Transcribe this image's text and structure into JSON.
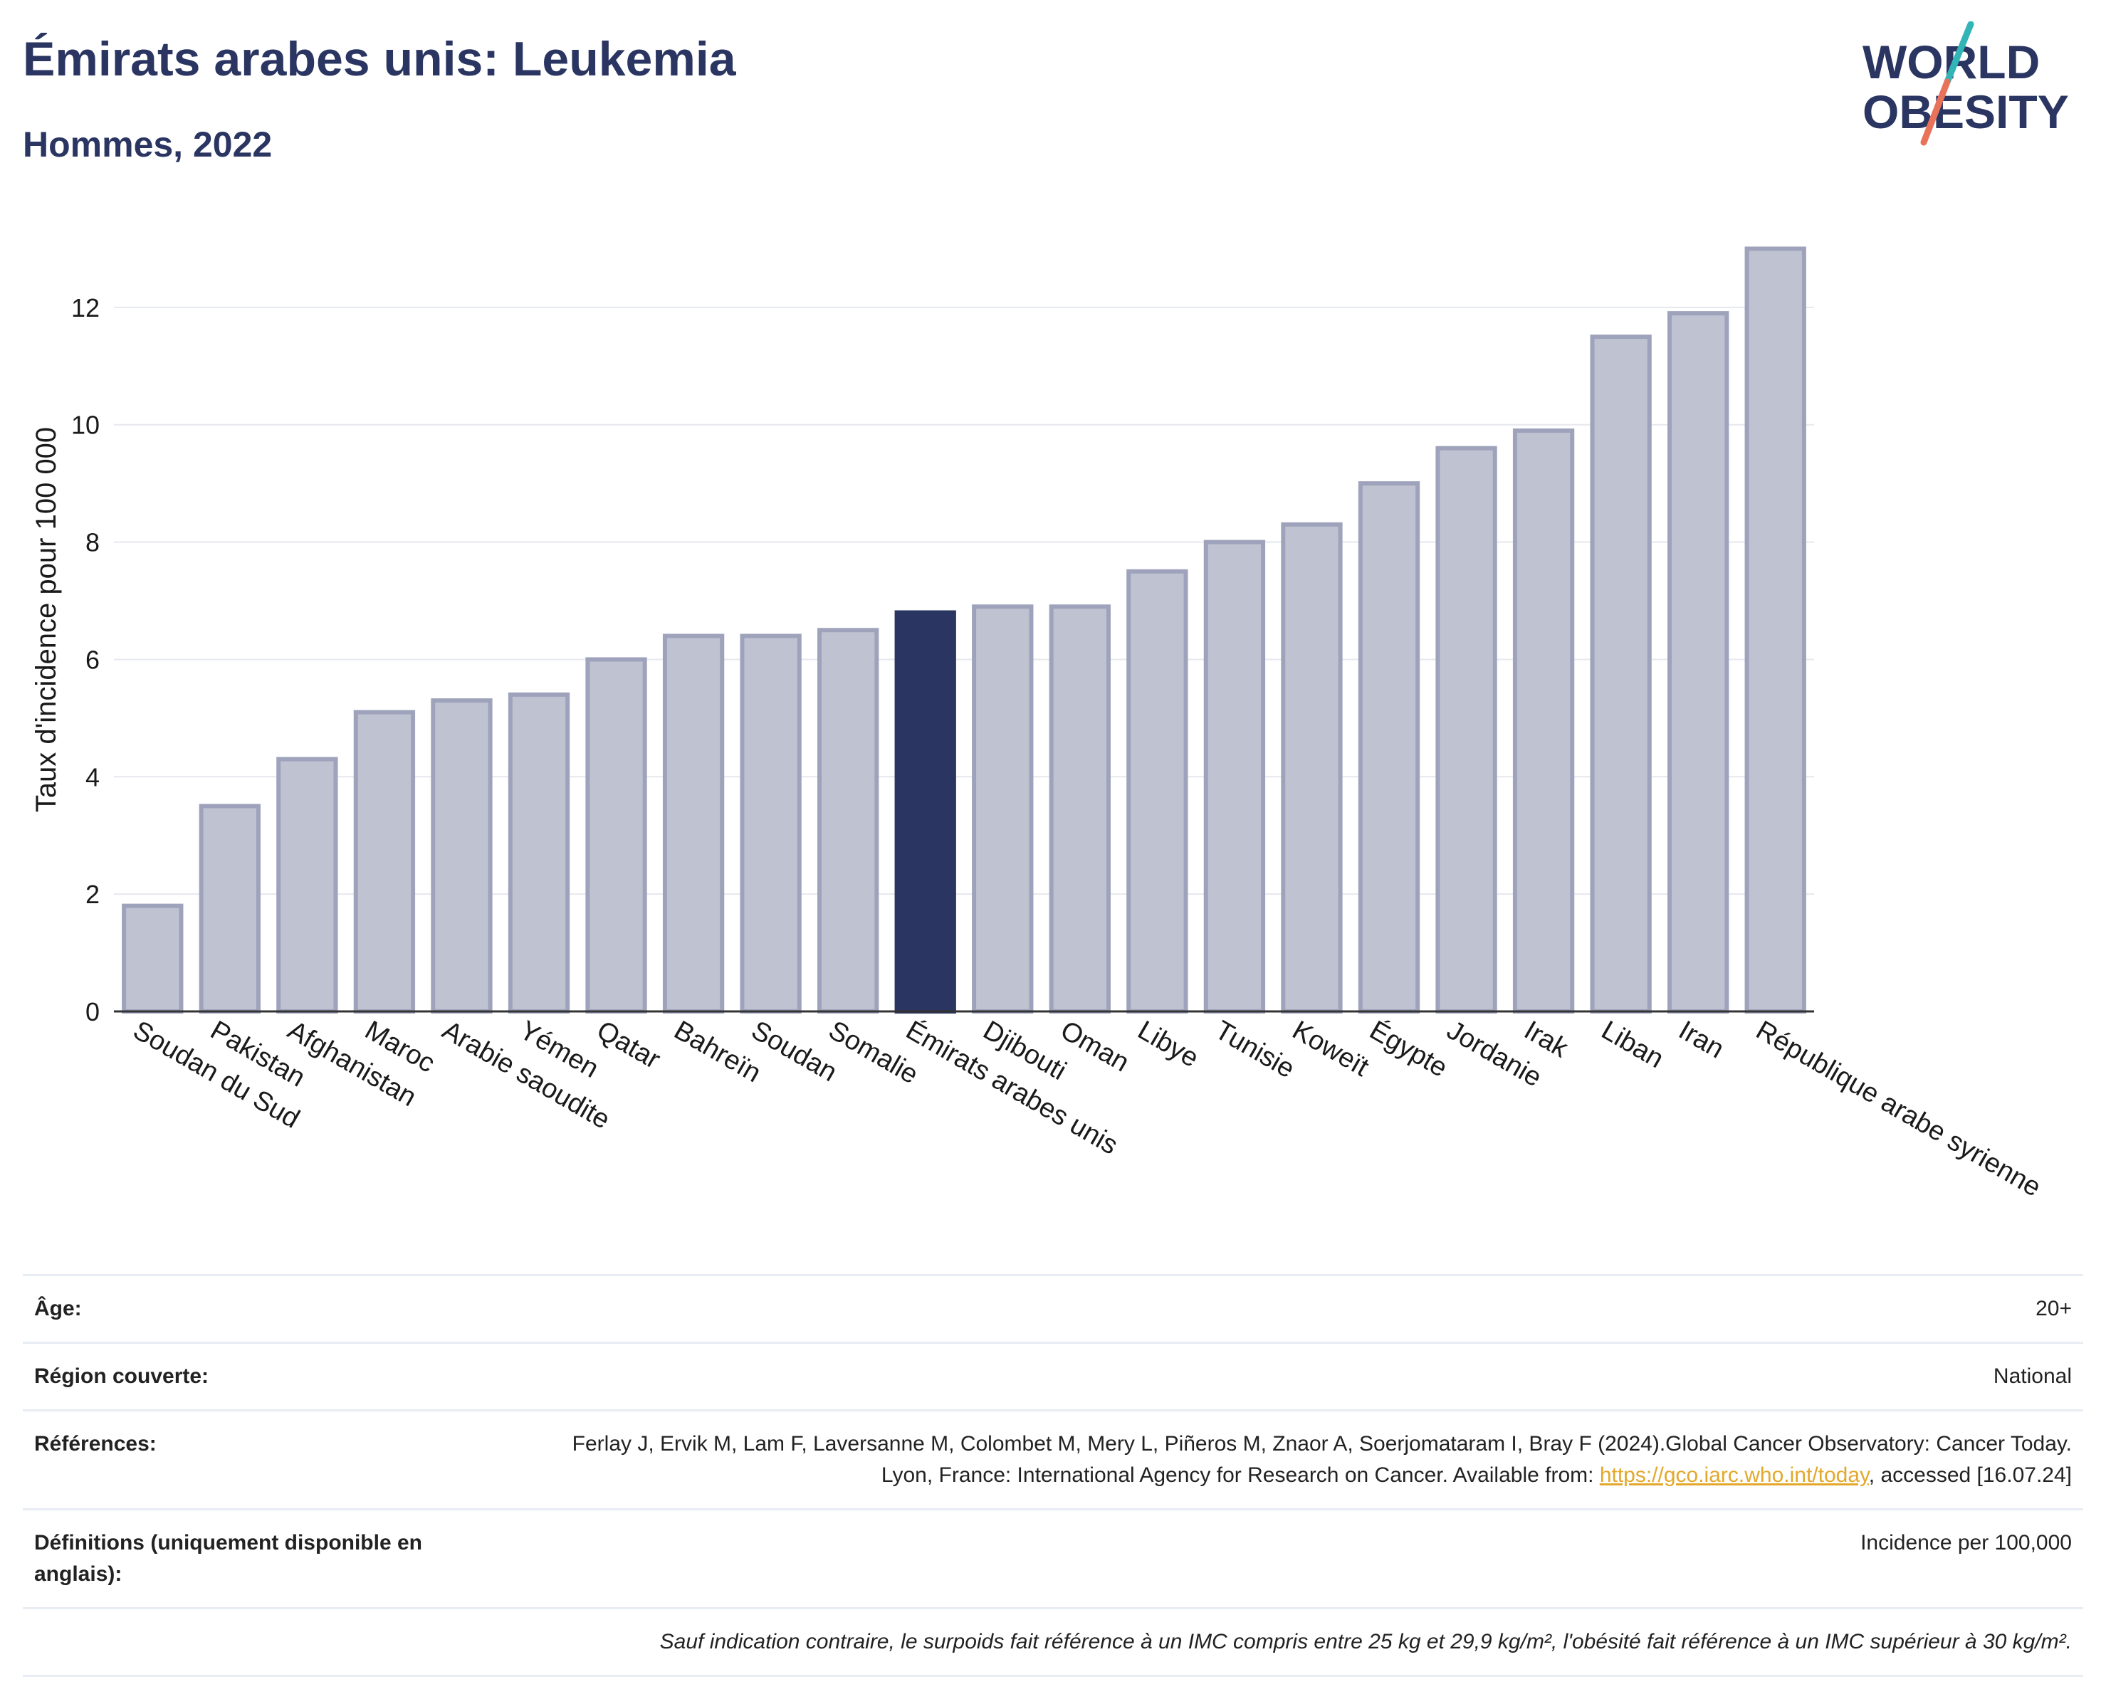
{
  "header": {
    "title": "Émirats arabes unis: Leukemia",
    "subtitle": "Hommes, 2022"
  },
  "logo": {
    "line1": "WORLD",
    "line2": "OBESITY",
    "colors": {
      "navy": "#2a3561",
      "teal": "#33b5b7",
      "coral": "#e8735a"
    }
  },
  "chart_data": {
    "type": "bar",
    "title": "",
    "xlabel": "",
    "ylabel": "Taux d'incidence pour 100 000",
    "ylim": [
      0,
      13.6
    ],
    "yticks": [
      0,
      2,
      4,
      6,
      8,
      10,
      12
    ],
    "grid": true,
    "categories": [
      "Soudan du Sud",
      "Pakistan",
      "Afghanistan",
      "Maroc",
      "Arabie saoudite",
      "Yémen",
      "Qatar",
      "Bahreïn",
      "Soudan",
      "Somalie",
      "Émirats arabes unis",
      "Djibouti",
      "Oman",
      "Libye",
      "Tunisie",
      "Koweït",
      "Égypte",
      "Jordanie",
      "Irak",
      "Liban",
      "Iran",
      "République arabe syrienne"
    ],
    "values": [
      1.8,
      3.5,
      4.3,
      5.1,
      5.3,
      5.4,
      6.0,
      6.4,
      6.4,
      6.5,
      6.8,
      6.9,
      6.9,
      7.5,
      8.0,
      8.3,
      9.0,
      9.6,
      9.9,
      11.5,
      11.9,
      13.0
    ],
    "highlight": "Émirats arabes unis",
    "colors": {
      "bar": "#bfc2d0",
      "bar_border": "#9ea3bb",
      "highlight": "#2a3561",
      "grid": "#e6e8ee",
      "axis": "#333333"
    }
  },
  "info": {
    "age_label": "Âge:",
    "age_value": "20+",
    "region_label": "Région couverte:",
    "region_value": "National",
    "refs_label": "Références:",
    "refs_text_1": "Ferlay J, Ervik M, Lam F, Laversanne M, Colombet M, Mery L, Piñeros M, Znaor A, Soerjomataram I, Bray F (2024).Global Cancer Observatory: Cancer Today. Lyon, France: International Agency for Research on Cancer. Available from: ",
    "refs_link": "https://gco.iarc.who.int/today",
    "refs_text_2": ", accessed [16.07.24]",
    "defs_label": "Définitions (uniquement disponible en anglais):",
    "defs_value": "Incidence per 100,000",
    "note": "Sauf indication contraire, le surpoids fait référence à un IMC compris entre 25 kg et 29,9 kg/m², l'obésité fait référence à un IMC supérieur à 30 kg/m²."
  }
}
